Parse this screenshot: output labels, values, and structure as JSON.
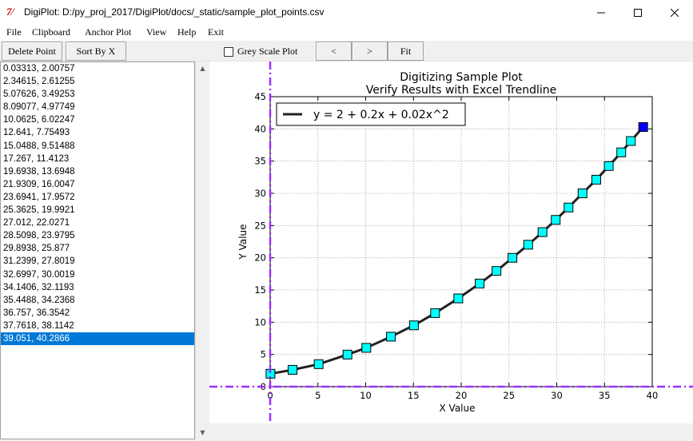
{
  "window": {
    "title": "DigiPlot: D:/py_proj_2017/DigiPlot/docs/_static/sample_plot_points.csv",
    "app_icon": "tk-feather-icon"
  },
  "menu": [
    "File",
    "Clipboard",
    "Anchor Plot",
    "View",
    "Help",
    "Exit"
  ],
  "toolbar": {
    "delete_point": "Delete Point",
    "sort_by_x": "Sort By X",
    "grey_scale": "Grey Scale Plot",
    "grey_scale_checked": false,
    "prev": "<",
    "next": ">",
    "fit": "Fit"
  },
  "points_list": {
    "items": [
      "0.03313, 2.00757",
      "2.34615, 2.61255",
      "5.07626, 3.49253",
      "8.09077, 4.97749",
      "10.0625, 6.02247",
      "12.641, 7.75493",
      "15.0488, 9.51488",
      "17.267, 11.4123",
      "19.6938, 13.6948",
      "21.9309, 16.0047",
      "23.6941, 17.9572",
      "25.3625, 19.9921",
      "27.012, 22.0271",
      "28.5098, 23.9795",
      "29.8938, 25.877",
      "31.2399, 27.8019",
      "32.6997, 30.0019",
      "34.1406, 32.1193",
      "35.4488, 34.2368",
      "36.757, 36.3542",
      "37.7618, 38.1142",
      "39.051, 40.2866"
    ],
    "selected_index": 21
  },
  "chart_data": {
    "type": "line",
    "title": "Digitizing Sample Plot",
    "subtitle": "Verify Results with Excel Trendline",
    "xlabel": "X Value",
    "ylabel": "Y Value",
    "xlim": [
      0,
      40
    ],
    "ylim": [
      0,
      45
    ],
    "xticks": [
      "0",
      "5",
      "10",
      "15",
      "20",
      "25",
      "30",
      "35",
      "40"
    ],
    "yticks": [
      "0",
      "5",
      "10",
      "15",
      "20",
      "25",
      "30",
      "35",
      "40",
      "45"
    ],
    "grid": true,
    "legend": "y = 2 + 0.2x + 0.02x^2",
    "legend_position": "top-left",
    "series": [
      {
        "name": "y = 2 + 0.2x + 0.02x^2",
        "x": [
          0.03313,
          2.34615,
          5.07626,
          8.09077,
          10.0625,
          12.641,
          15.0488,
          17.267,
          19.6938,
          21.9309,
          23.6941,
          25.3625,
          27.012,
          28.5098,
          29.8938,
          31.2399,
          32.6997,
          34.1406,
          35.4488,
          36.757,
          37.7618,
          39.051
        ],
        "y": [
          2.00757,
          2.61255,
          3.49253,
          4.97749,
          6.02247,
          7.75493,
          9.51488,
          11.4123,
          13.6948,
          16.0047,
          17.9572,
          19.9921,
          22.0271,
          23.9795,
          25.877,
          27.8019,
          30.0019,
          32.1193,
          34.2368,
          36.3542,
          38.1142,
          40.2866
        ]
      }
    ],
    "colors": {
      "marker_fill": "#00ffff",
      "marker_selected": "#0000ff",
      "line": "#222222",
      "anchor_axes": "#9b30ff"
    }
  }
}
